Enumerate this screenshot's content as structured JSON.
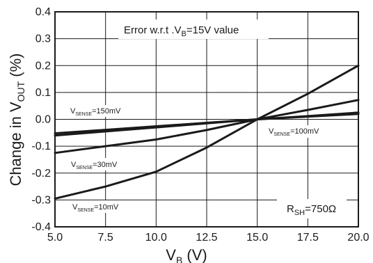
{
  "chart_data": {
    "type": "line",
    "title": "",
    "xlabel": {
      "main": "V",
      "sub": "B",
      "suffix": " (V)"
    },
    "ylabel": {
      "prefix": "Change in V",
      "sub": "OUT",
      "suffix": " (%)"
    },
    "xlim": [
      5.0,
      20.0
    ],
    "ylim": [
      -0.4,
      0.4
    ],
    "xticks": [
      "5.0",
      "7.5",
      "10.0",
      "12.5",
      "15.0",
      "17.5",
      "20.0"
    ],
    "yticks": [
      "0.4",
      "0.3",
      "0.2",
      "0.1",
      "0.0",
      "-0.1",
      "-0.2",
      "-0.3",
      "-0.4"
    ],
    "grid": true,
    "note": {
      "prefix": "Error w.r.t .V",
      "sub": "B",
      "suffix": "=15V value"
    },
    "rsh_label": {
      "prefix": "R",
      "sub": "SH",
      "suffix": "=750Ω"
    },
    "series": [
      {
        "name": "V_SENSE=10mV",
        "label_main": "V",
        "label_sub": "SENSE",
        "label_suffix": "=10mV",
        "x": [
          5.0,
          7.5,
          10.0,
          12.5,
          15.0,
          17.5,
          20.0
        ],
        "values": [
          -0.295,
          -0.25,
          -0.195,
          -0.105,
          0.0,
          0.095,
          0.2
        ]
      },
      {
        "name": "V_SENSE=30mV",
        "label_main": "V",
        "label_sub": "SENSE",
        "label_suffix": "=30mV",
        "x": [
          5.0,
          7.5,
          10.0,
          12.5,
          15.0,
          17.5,
          20.0
        ],
        "values": [
          -0.125,
          -0.1,
          -0.075,
          -0.04,
          0.0,
          0.035,
          0.072
        ]
      },
      {
        "name": "V_SENSE=100mV",
        "label_main": "V",
        "label_sub": "SENSE",
        "label_suffix": "=100mV",
        "x": [
          5.0,
          7.5,
          10.0,
          12.5,
          15.0,
          17.5,
          20.0
        ],
        "values": [
          -0.06,
          -0.045,
          -0.03,
          -0.015,
          0.0,
          0.012,
          0.025
        ]
      },
      {
        "name": "V_SENSE=150mV",
        "label_main": "V",
        "label_sub": "SENSE",
        "label_suffix": "=150mV",
        "x": [
          5.0,
          7.5,
          10.0,
          12.5,
          15.0,
          17.5,
          20.0
        ],
        "values": [
          -0.052,
          -0.039,
          -0.026,
          -0.013,
          0.0,
          0.01,
          0.02
        ]
      }
    ]
  }
}
